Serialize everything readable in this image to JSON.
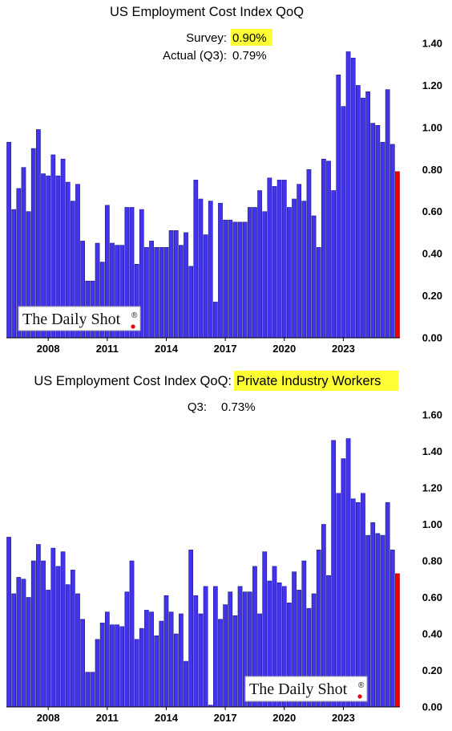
{
  "colors": {
    "bar": "#4433ee",
    "bar_stroke": "#1a1a80",
    "last_bar": "#ee0000",
    "highlight": "#ffff33",
    "axis": "#000000"
  },
  "logo": {
    "text": "The Daily Shot",
    "mark": "®"
  },
  "chart_data": [
    {
      "type": "bar",
      "title": "US Employment Cost Index QoQ",
      "survey_label": "Survey:",
      "survey_value": "0.90%",
      "actual_label": "Actual (Q3):",
      "actual_value": "0.79%",
      "ylim": [
        0,
        1.4
      ],
      "yticks": [
        "0.00",
        "0.20",
        "0.40",
        "0.60",
        "0.80",
        "1.00",
        "1.20",
        "1.40"
      ],
      "xticks": [
        "2008",
        "2011",
        "2014",
        "2017",
        "2020",
        "2023"
      ],
      "values": [
        0.93,
        0.61,
        0.71,
        0.81,
        0.6,
        0.9,
        0.99,
        0.78,
        0.77,
        0.87,
        0.77,
        0.85,
        0.74,
        0.65,
        0.73,
        0.46,
        0.27,
        0.27,
        0.45,
        0.36,
        0.63,
        0.45,
        0.44,
        0.44,
        0.62,
        0.62,
        0.35,
        0.61,
        0.43,
        0.46,
        0.43,
        0.43,
        0.43,
        0.51,
        0.51,
        0.44,
        0.5,
        0.34,
        0.75,
        0.66,
        0.49,
        0.65,
        0.17,
        0.64,
        0.56,
        0.56,
        0.55,
        0.55,
        0.55,
        0.62,
        0.62,
        0.7,
        0.6,
        0.76,
        0.72,
        0.75,
        0.75,
        0.62,
        0.66,
        0.73,
        0.65,
        0.8,
        0.58,
        0.43,
        0.85,
        0.84,
        0.7,
        1.25,
        1.1,
        1.36,
        1.33,
        1.2,
        1.14,
        1.17,
        1.02,
        1.01,
        0.93,
        1.18,
        0.92,
        0.79
      ]
    },
    {
      "type": "bar",
      "title_prefix": "US Employment Cost Index QoQ:",
      "title_highlight": "Private Industry Workers",
      "q3_label": "Q3:",
      "q3_value": "0.73%",
      "ylim": [
        0,
        1.6
      ],
      "yticks": [
        "0.00",
        "0.20",
        "0.40",
        "0.60",
        "0.80",
        "1.00",
        "1.20",
        "1.40",
        "1.60"
      ],
      "xticks": [
        "2008",
        "2011",
        "2014",
        "2017",
        "2020",
        "2023"
      ],
      "values": [
        0.93,
        0.62,
        0.71,
        0.7,
        0.6,
        0.8,
        0.89,
        0.8,
        0.64,
        0.87,
        0.77,
        0.85,
        0.67,
        0.75,
        0.62,
        0.48,
        0.19,
        0.19,
        0.37,
        0.46,
        0.52,
        0.45,
        0.45,
        0.44,
        0.63,
        0.8,
        0.37,
        0.43,
        0.53,
        0.52,
        0.39,
        0.47,
        0.61,
        0.52,
        0.4,
        0.51,
        0.25,
        0.86,
        0.61,
        0.51,
        0.66,
        0.01,
        0.66,
        0.48,
        0.56,
        0.63,
        0.5,
        0.66,
        0.63,
        0.63,
        0.77,
        0.51,
        0.85,
        0.69,
        0.77,
        0.68,
        0.66,
        0.57,
        0.74,
        0.64,
        0.8,
        0.54,
        0.62,
        0.86,
        1.0,
        0.72,
        1.46,
        1.17,
        1.36,
        1.47,
        1.14,
        1.12,
        1.17,
        0.94,
        1.01,
        0.95,
        0.94,
        1.12,
        0.86,
        0.73
      ]
    }
  ]
}
